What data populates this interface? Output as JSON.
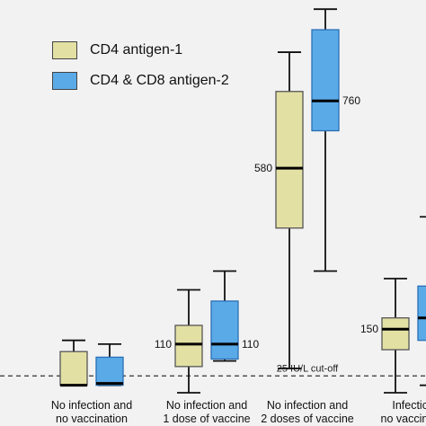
{
  "chart_data": {
    "type": "box",
    "categories": [
      "No infection and no vaccination",
      "No infection and 1 dose of vaccine",
      "No infection and 2 doses of vaccine",
      "Infection and no vaccination"
    ],
    "category_lines": [
      [
        "No infection and",
        "no vaccination"
      ],
      [
        "No infection and",
        "1 dose of vaccine"
      ],
      [
        "No infection and",
        "2 doses of vaccine"
      ],
      [
        "Infection",
        "no vaccinatio"
      ]
    ],
    "series": [
      {
        "name": "CD4 antigen-1",
        "color": "#e3e0a4",
        "boxes": [
          {
            "min": 0,
            "q1": 0,
            "median": 0,
            "q3": 90,
            "max": 120,
            "label": ""
          },
          {
            "min": -20,
            "q1": 50,
            "median": 110,
            "q3": 160,
            "max": 255,
            "label": "110"
          },
          {
            "min": 45,
            "q1": 420,
            "median": 580,
            "q3": 785,
            "max": 890,
            "label": "580"
          },
          {
            "min": -20,
            "q1": 95,
            "median": 150,
            "q3": 180,
            "max": 285,
            "label": "150"
          }
        ]
      },
      {
        "name": "CD4 & CD8 antigen-2",
        "color": "#5aaae8",
        "boxes": [
          {
            "min": 0,
            "q1": 0,
            "median": 5,
            "q3": 75,
            "max": 110,
            "label": ""
          },
          {
            "min": 65,
            "q1": 70,
            "median": 110,
            "q3": 225,
            "max": 305,
            "label": "110"
          },
          {
            "min": 305,
            "q1": 680,
            "median": 760,
            "q3": 950,
            "max": 1005,
            "label": "760"
          },
          {
            "min": 0,
            "q1": 120,
            "median": 180,
            "q3": 265,
            "max": 450,
            "label": ""
          }
        ]
      }
    ],
    "cutoff": {
      "value": 25,
      "label": "25 IU/L cut-off"
    },
    "ylim": [
      -20,
      1015
    ],
    "legend_position": "top-left",
    "grid": false
  },
  "legend": {
    "items": [
      {
        "label": "CD4 antigen-1",
        "color": "#e3e0a4"
      },
      {
        "label": "CD4 & CD8 antigen-2",
        "color": "#5aaae8"
      }
    ]
  }
}
